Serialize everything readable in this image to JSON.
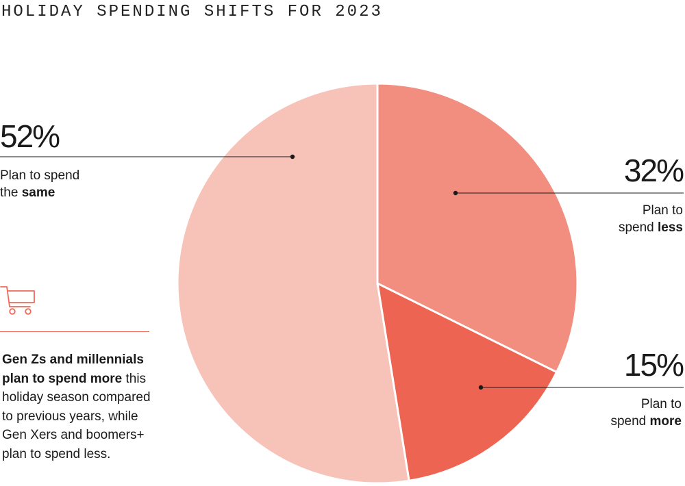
{
  "title": "HOLIDAY SPENDING SHIFTS FOR 2023",
  "chart_data": {
    "type": "pie",
    "title": "HOLIDAY SPENDING SHIFTS FOR 2023",
    "start": "12 o'clock, clockwise",
    "slices": [
      {
        "value": 32,
        "percent_label": "32%",
        "label_pre": "Plan to",
        "label_plain": "spend",
        "label_bold": "less",
        "color": "#f28e80"
      },
      {
        "value": 15,
        "percent_label": "15%",
        "label_pre": "Plan to",
        "label_plain": "spend",
        "label_bold": "more",
        "color": "#ee6452"
      },
      {
        "value": 52,
        "percent_label": "52%",
        "label_pre": "Plan to spend",
        "label_plain": "the",
        "label_bold": "same",
        "color": "#f7c3b9"
      }
    ]
  },
  "note": {
    "bold": "Gen Zs and millennials plan to spend more",
    "text": "this holiday season compared to previous years, while Gen Xers and boomers+ plan to spend less."
  },
  "icon": "shopping-cart-icon",
  "accent_color": "#ee6a5a"
}
